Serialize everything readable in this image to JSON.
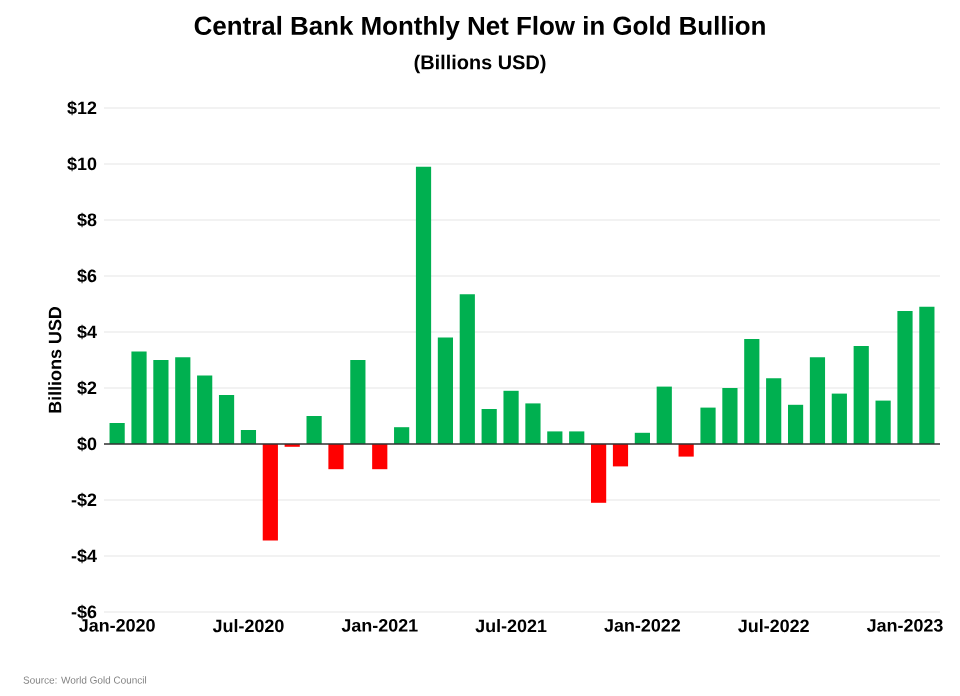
{
  "chart_data": {
    "type": "bar",
    "title": "Central Bank Monthly Net Flow in Gold Bullion",
    "subtitle": "(Billions USD)",
    "ylabel": "Billions USD",
    "categories": [
      "Jan-2020",
      null,
      null,
      null,
      null,
      null,
      "Jul-2020",
      null,
      null,
      null,
      null,
      null,
      "Jan-2021",
      null,
      null,
      null,
      null,
      null,
      "Jul-2021",
      null,
      null,
      null,
      null,
      null,
      "Jan-2022",
      null,
      null,
      null,
      null,
      null,
      "Jul-2022",
      null,
      null,
      null,
      null,
      null,
      "Jan-2023",
      null
    ],
    "values": [
      0.75,
      3.3,
      3.0,
      3.1,
      2.45,
      1.75,
      0.5,
      -3.45,
      -0.1,
      1.0,
      -0.9,
      3.0,
      -0.9,
      0.6,
      9.9,
      3.8,
      5.35,
      1.25,
      1.9,
      1.45,
      0.45,
      0.45,
      -2.1,
      -0.8,
      0.4,
      2.05,
      -0.45,
      1.3,
      2.0,
      3.75,
      2.35,
      1.4,
      3.1,
      1.8,
      3.5,
      1.55,
      4.75,
      4.9
    ],
    "colors": [
      "#00b050",
      "#00b050",
      "#00b050",
      "#00b050",
      "#00b050",
      "#00b050",
      "#00b050",
      "#ff0000",
      "#ff0000",
      "#00b050",
      "#ff0000",
      "#00b050",
      "#ff0000",
      "#00b050",
      "#00b050",
      "#00b050",
      "#00b050",
      "#00b050",
      "#00b050",
      "#00b050",
      "#00b050",
      "#00b050",
      "#ff0000",
      "#ff0000",
      "#00b050",
      "#00b050",
      "#ff0000",
      "#00b050",
      "#00b050",
      "#00b050",
      "#00b050",
      "#00b050",
      "#00b050",
      "#00b050",
      "#00b050",
      "#00b050",
      "#00b050",
      "#00b050"
    ],
    "ylim": [
      -6,
      12
    ],
    "yticks": [
      {
        "value": -6,
        "label": "-$6"
      },
      {
        "value": -4,
        "label": "-$4"
      },
      {
        "value": -2,
        "label": "-$2"
      },
      {
        "value": 0,
        "label": "$0"
      },
      {
        "value": 2,
        "label": "$2"
      },
      {
        "value": 4,
        "label": "$4"
      },
      {
        "value": 6,
        "label": "$6"
      },
      {
        "value": 8,
        "label": "$8"
      },
      {
        "value": 10,
        "label": "$10"
      },
      {
        "value": 12,
        "label": "$12"
      }
    ],
    "grid": "y",
    "annotations": [
      "Source: World Gold Council"
    ]
  }
}
